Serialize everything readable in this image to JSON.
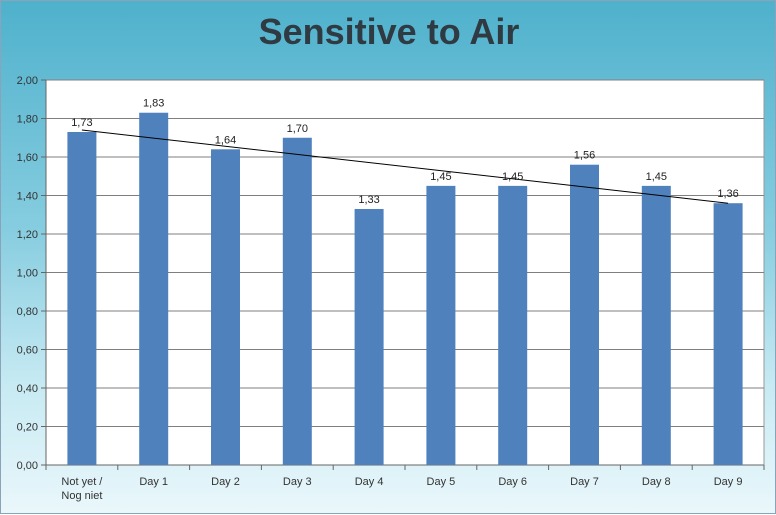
{
  "chart_data": {
    "type": "bar",
    "title": "Sensitive to Air",
    "categories": [
      "Not yet / Nog niet",
      "Day 1",
      "Day 2",
      "Day 3",
      "Day 4",
      "Day 5",
      "Day 6",
      "Day 7",
      "Day 8",
      "Day 9"
    ],
    "values": [
      1.73,
      1.83,
      1.64,
      1.7,
      1.33,
      1.45,
      1.45,
      1.56,
      1.45,
      1.36
    ],
    "data_labels": [
      "1,73",
      "1,83",
      "1,64",
      "1,70",
      "1,33",
      "1,45",
      "1,45",
      "1,56",
      "1,45",
      "1,36"
    ],
    "y_ticks": [
      0,
      0.2,
      0.4,
      0.6,
      0.8,
      1.0,
      1.2,
      1.4,
      1.6,
      1.8,
      2.0
    ],
    "y_tick_labels": [
      "0,00",
      "0,20",
      "0,40",
      "0,60",
      "0,80",
      "1,00",
      "1,20",
      "1,40",
      "1,60",
      "1,80",
      "2,00"
    ],
    "ylim": [
      0,
      2.0
    ],
    "xlabel": "",
    "ylabel": "",
    "grid": true,
    "legend": "none",
    "trendline": {
      "type": "linear",
      "start": 1.74,
      "end": 1.36
    },
    "colors": {
      "bar": "#4f81bd",
      "grid": "#7f7f7f",
      "trend": "#000000"
    }
  }
}
